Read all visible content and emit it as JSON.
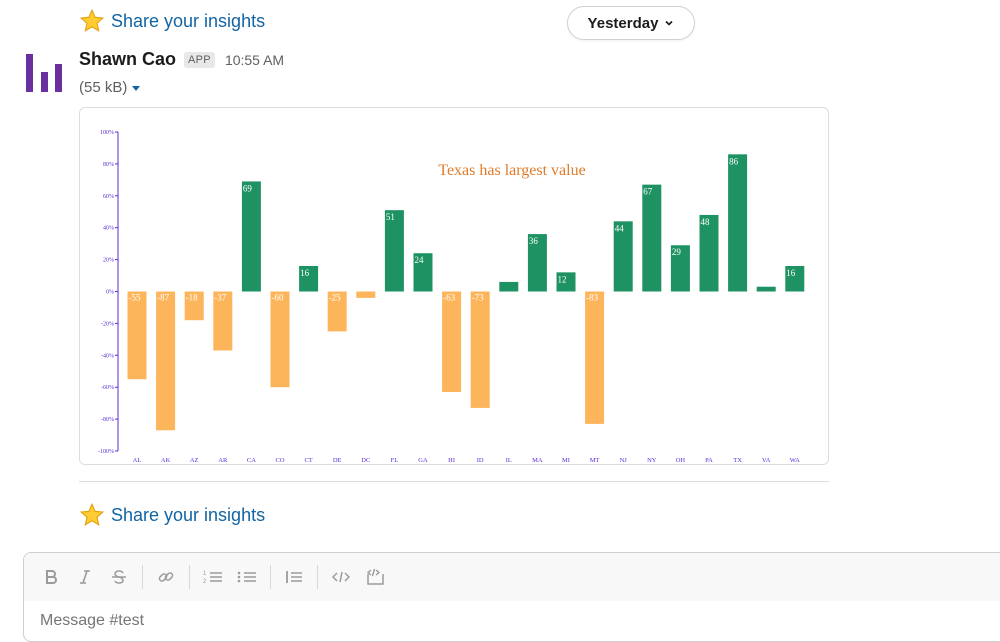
{
  "insights_top": {
    "label": "Share your insights"
  },
  "date_divider": {
    "label": "Yesterday"
  },
  "message": {
    "sender": "Shawn Cao",
    "badge": "APP",
    "time": "10:55 AM",
    "file_size": "(55 kB)"
  },
  "chart_data": {
    "type": "bar",
    "title": "Texas has largest value",
    "categories": [
      "AL",
      "AK",
      "AZ",
      "AR",
      "CA",
      "CO",
      "CT",
      "DE",
      "DC",
      "FL",
      "GA",
      "HI",
      "ID",
      "IL",
      "MA",
      "MI",
      "MT",
      "NJ",
      "NY",
      "OH",
      "PA",
      "TX",
      "VA",
      "WA"
    ],
    "values": [
      -55,
      -87,
      -18,
      -37,
      69,
      -60,
      16,
      -25,
      -4,
      51,
      24,
      -63,
      -73,
      6,
      36,
      12,
      -83,
      44,
      67,
      29,
      48,
      86,
      3,
      16
    ],
    "value_labels": [
      "-55",
      "-87",
      "-18",
      "-37",
      "69",
      "-60",
      "16",
      "-25",
      "",
      "51",
      "24",
      "-63",
      "-73",
      "",
      "36",
      "12",
      "-83",
      "44",
      "67",
      "29",
      "48",
      "86",
      "",
      "16"
    ],
    "yticks": [
      "100%",
      "80%",
      "60%",
      "40%",
      "20%",
      "0%",
      "-20%",
      "-40%",
      "-60%",
      "-80%",
      "-100%"
    ],
    "ylim": [
      -100,
      100
    ],
    "colors": {
      "positive": "#1f9263",
      "negative": "#fdb55c",
      "title": "#e07b2a",
      "axis": "#5b2bd6"
    }
  },
  "insights_bottom": {
    "label": "Share your insights"
  },
  "composer": {
    "placeholder": "Message #test"
  }
}
